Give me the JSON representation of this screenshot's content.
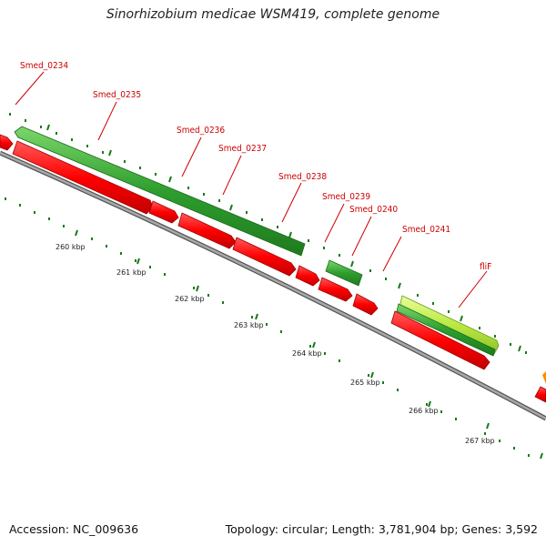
{
  "title": "Sinorhizobium medicae WSM419, complete genome",
  "footer": {
    "accession_label": "Accession: NC_009636",
    "summary": "Topology: circular; Length: 3,781,904 bp; Genes: 3,592"
  },
  "colors": {
    "forward_gene": "#ff0000",
    "reverse_gene": "#2e9e2e",
    "highlight_gene": "#b8e840",
    "backbone": "#8c8c8c",
    "label": "#cc0000",
    "tick": "#1a7a1a"
  },
  "scale_labels": [
    "260 kbp",
    "261 kbp",
    "262 kbp",
    "263 kbp",
    "264 kbp",
    "265 kbp",
    "266 kbp",
    "267 kbp"
  ],
  "genes": [
    {
      "name": "Smed_0234"
    },
    {
      "name": "Smed_0235"
    },
    {
      "name": "Smed_0236"
    },
    {
      "name": "Smed_0237"
    },
    {
      "name": "Smed_0238"
    },
    {
      "name": "Smed_0239"
    },
    {
      "name": "Smed_0240"
    },
    {
      "name": "Smed_0241"
    },
    {
      "name": "fliF"
    }
  ]
}
